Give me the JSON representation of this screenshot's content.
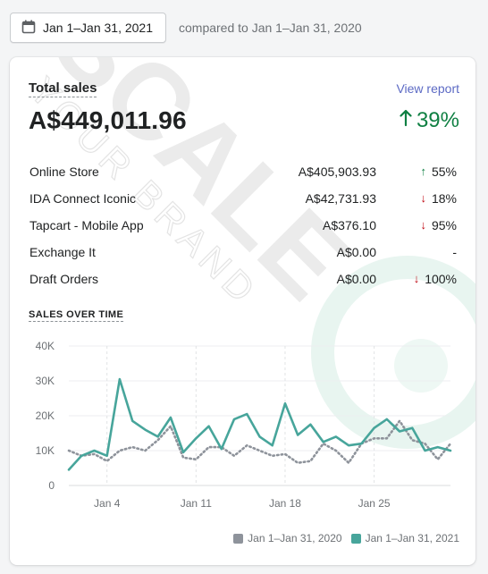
{
  "toolbar": {
    "date_range": "Jan 1–Jan 31, 2021",
    "compared_label": "compared to Jan 1–Jan 31, 2020"
  },
  "card": {
    "title": "Total sales",
    "view_report": "View report",
    "total": "A$449,011.96",
    "total_change": "39%",
    "total_change_direction": "up",
    "watermark_text": "SCALE",
    "watermark_subtext": "YOUR BRAND",
    "rows": [
      {
        "name": "Online Store",
        "amount": "A$405,903.93",
        "change": "55%",
        "direction": "up"
      },
      {
        "name": "IDA Connect Iconic",
        "amount": "A$42,731.93",
        "change": "18%",
        "direction": "down"
      },
      {
        "name": "Tapcart - Mobile App",
        "amount": "A$376.10",
        "change": "95%",
        "direction": "down"
      },
      {
        "name": "Exchange It",
        "amount": "A$0.00",
        "change": "-",
        "direction": "none"
      },
      {
        "name": "Draft Orders",
        "amount": "A$0.00",
        "change": "100%",
        "direction": "down"
      }
    ],
    "section_title": "SALES OVER TIME"
  },
  "colors": {
    "current": "#47a59b",
    "previous": "#8e939b",
    "positive": "#108043",
    "negative": "#bf0711",
    "link": "#5c6ac4"
  },
  "chart_data": {
    "type": "line",
    "x": [
      1,
      2,
      3,
      4,
      5,
      6,
      7,
      8,
      9,
      10,
      11,
      12,
      13,
      14,
      15,
      16,
      17,
      18,
      19,
      20,
      21,
      22,
      23,
      24,
      25,
      26,
      27,
      28,
      29,
      30,
      31
    ],
    "x_ticks": [
      {
        "value": 4,
        "label": "Jan 4"
      },
      {
        "value": 11,
        "label": "Jan 11"
      },
      {
        "value": 18,
        "label": "Jan 18"
      },
      {
        "value": 25,
        "label": "Jan 25"
      }
    ],
    "y_ticks": [
      {
        "value": 0,
        "label": "0"
      },
      {
        "value": 10000,
        "label": "10K"
      },
      {
        "value": 20000,
        "label": "20K"
      },
      {
        "value": 30000,
        "label": "30K"
      },
      {
        "value": 40000,
        "label": "40K"
      }
    ],
    "ylim": [
      0,
      40000
    ],
    "series": [
      {
        "name": "Jan 1–Jan 31, 2020",
        "style": "dotted",
        "values": [
          10000,
          8500,
          9000,
          7000,
          10000,
          11000,
          10000,
          13000,
          17000,
          8000,
          7500,
          11000,
          11000,
          8500,
          11500,
          10000,
          8500,
          9000,
          6500,
          7000,
          12000,
          10000,
          6500,
          12000,
          13500,
          13500,
          18500,
          13000,
          12000,
          7500,
          12000
        ]
      },
      {
        "name": "Jan 1–Jan 31, 2021",
        "style": "solid",
        "values": [
          4500,
          8500,
          10000,
          8500,
          30500,
          18500,
          16000,
          14000,
          19500,
          9500,
          13500,
          17000,
          10500,
          19000,
          20500,
          14000,
          11500,
          23500,
          14500,
          17500,
          12500,
          14000,
          11500,
          12000,
          16500,
          19000,
          15500,
          16500,
          10000,
          11000,
          10000
        ]
      }
    ],
    "grid": true,
    "legend_position": "bottom-right"
  }
}
